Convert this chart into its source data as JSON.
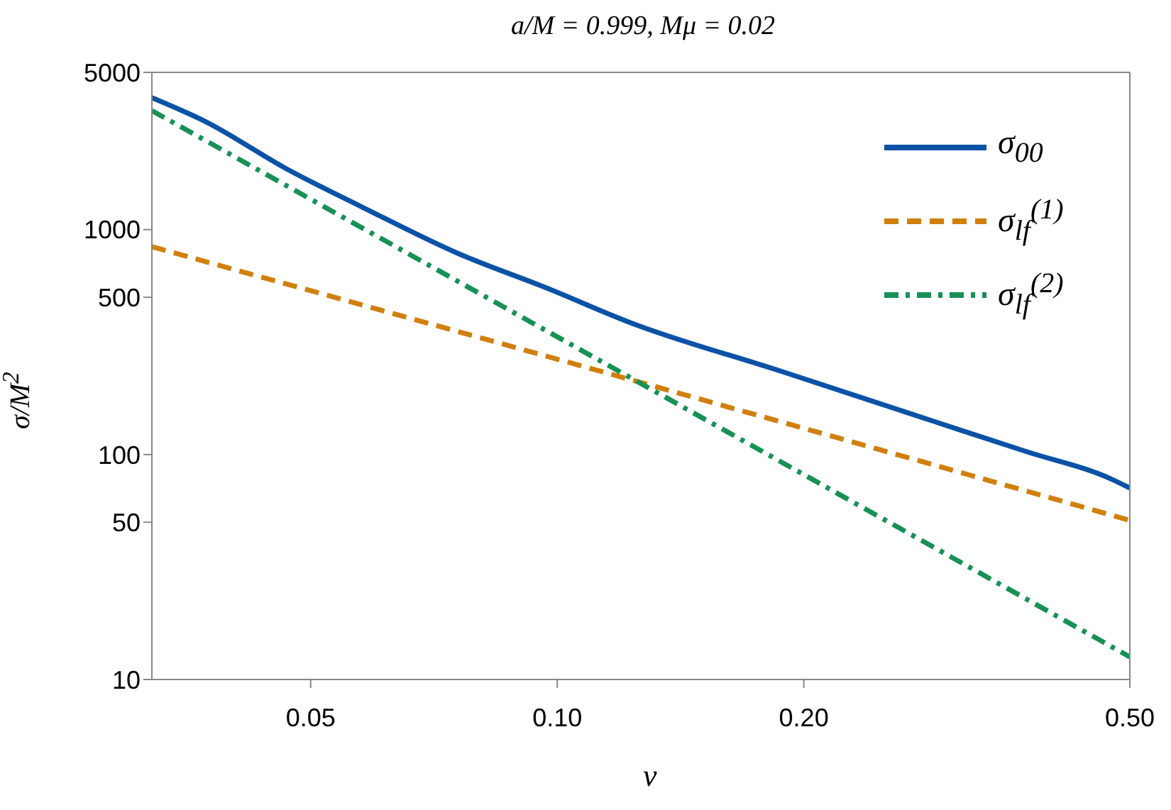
{
  "chart_data": {
    "type": "line",
    "title": "a/M = 0.999, Mμ = 0.02",
    "xlabel": "v",
    "ylabel": "σ/M$^{2}$",
    "log": "xy",
    "legend": "top right",
    "marker": "none",
    "xlim": [
      0.032,
      0.5
    ],
    "xticks": [
      0.05,
      {
        "value": 0.1,
        "label": "0.10"
      },
      {
        "value": 0.2,
        "label": "0.20"
      },
      {
        "value": 0.5,
        "label": "0.50"
      }
    ],
    "ylim": [
      10,
      5000
    ],
    "yticks": [
      10,
      50,
      100,
      500,
      1000,
      5000
    ],
    "series": [
      {
        "name": "σ$_{00}$",
        "color": "#0a52a6",
        "line_style": "solid",
        "x": [
          0.032,
          0.0373,
          0.0465,
          0.0581,
          0.0752,
          0.0973,
          0.123,
          0.188,
          0.289,
          0.374,
          0.474,
          0.5
        ],
        "values": [
          3855,
          3006,
          1880,
          1247,
          791,
          548,
          385,
          234,
          140,
          103,
          78,
          71
        ]
      },
      {
        "name": "σ$_{lf}$$^{(1)}$",
        "color": "#d17f0c",
        "line_style": "dashed",
        "x": [
          0.032,
          0.123,
          0.5
        ],
        "values": [
          839,
          215,
          51
        ]
      },
      {
        "name": "σ$_{lf}$$^{(2)}$",
        "color": "#179156",
        "line_style": "dashdot",
        "x": [
          0.032,
          0.123,
          0.5
        ],
        "values": [
          3380,
          219,
          12.6
        ]
      }
    ]
  }
}
